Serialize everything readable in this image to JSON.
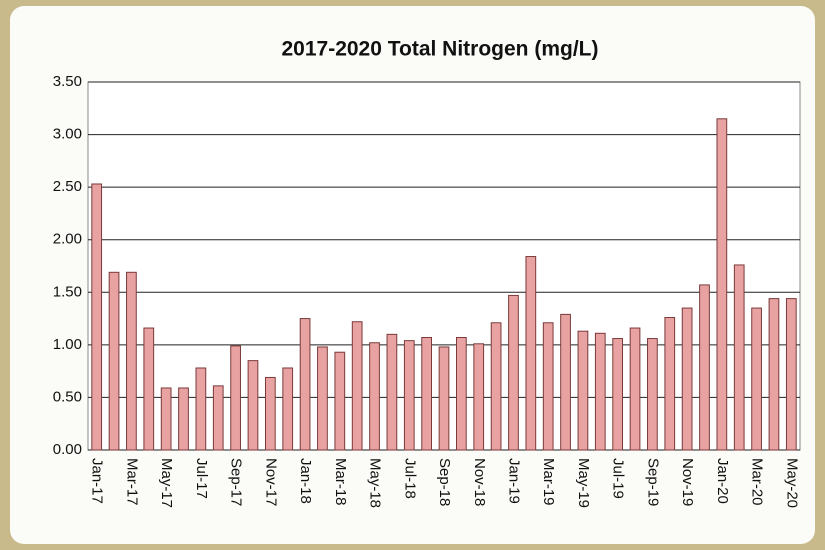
{
  "chart_data": {
    "type": "bar",
    "title": "2017-2020 Total Nitrogen (mg/L)",
    "categories": [
      "Jan-17",
      null,
      "Mar-17",
      null,
      "May-17",
      null,
      "Jul-17",
      null,
      "Sep-17",
      null,
      "Nov-17",
      null,
      "Jan-18",
      null,
      "Mar-18",
      null,
      "May-18",
      null,
      "Jul-18",
      null,
      "Sep-18",
      null,
      "Nov-18",
      null,
      "Jan-19",
      null,
      "Mar-19",
      null,
      "May-19",
      null,
      "Jul-19",
      null,
      "Sep-19",
      null,
      "Nov-19",
      null,
      "Jan-20",
      null,
      "Mar-20",
      null,
      "May-20"
    ],
    "values": [
      2.53,
      1.69,
      1.69,
      1.16,
      0.59,
      0.59,
      0.78,
      0.61,
      0.99,
      0.85,
      0.69,
      0.78,
      1.25,
      0.98,
      0.93,
      1.22,
      1.02,
      1.1,
      1.04,
      1.07,
      0.98,
      1.07,
      1.01,
      1.21,
      1.47,
      1.84,
      1.21,
      1.29,
      1.13,
      1.11,
      1.06,
      1.16,
      1.06,
      1.26,
      1.35,
      1.57,
      3.15,
      1.76,
      1.35,
      1.44,
      1.44
    ],
    "color": "#e9a2a2",
    "ylim": [
      0,
      3.5
    ],
    "yticks": [
      {
        "value": 0,
        "label": "0.00"
      },
      {
        "value": 0.5,
        "label": "0.50"
      },
      {
        "value": 1,
        "label": "1.00"
      },
      {
        "value": 1.5,
        "label": "1.50"
      },
      {
        "value": 2,
        "label": "2.00"
      },
      {
        "value": 2.5,
        "label": "2.50"
      },
      {
        "value": 3,
        "label": "3.00"
      },
      {
        "value": 3.5,
        "label": "3.50"
      }
    ],
    "grid": true
  }
}
